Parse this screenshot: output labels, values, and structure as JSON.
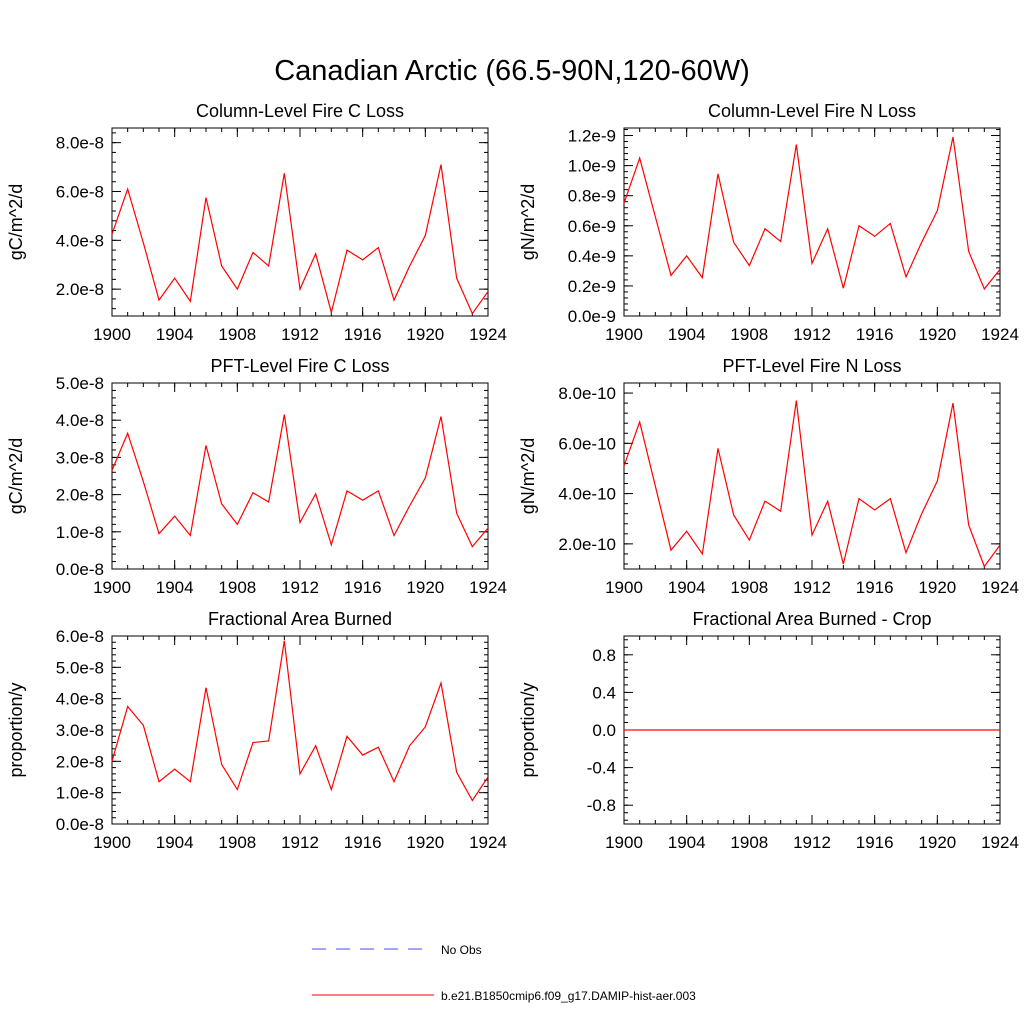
{
  "figure_title": "Canadian Arctic (66.5-90N,120-60W)",
  "colors": {
    "model": "#ff0000",
    "obs": "#4a4aff",
    "axis": "#000000"
  },
  "legend": [
    {
      "label": "No Obs",
      "style": "dashed",
      "color": "#4a4aff"
    },
    {
      "label": "b.e21.B1850cmip6.f09_g17.DAMIP-hist-aer.003",
      "style": "solid",
      "color": "#ff0000"
    }
  ],
  "chart_data": [
    {
      "type": "line",
      "title": "Column-Level Fire C Loss",
      "ylabel": "gC/m^2/d",
      "xlim": [
        1900,
        1924
      ],
      "ylim": [
        9e-09,
        8.6e-08
      ],
      "yticks": [
        2e-08,
        4e-08,
        6e-08,
        8e-08
      ],
      "ytick_labels": [
        "2.0e-8",
        "4.0e-8",
        "6.0e-8",
        "8.0e-8"
      ],
      "series": [
        {
          "values": [
            4.25e-08,
            6.1e-08,
            3.9e-08,
            1.55e-08,
            2.45e-08,
            1.5e-08,
            5.75e-08,
            2.95e-08,
            2e-08,
            3.5e-08,
            2.95e-08,
            6.75e-08,
            2e-08,
            3.45e-08,
            1.05e-08,
            3.6e-08,
            3.2e-08,
            3.7e-08,
            1.55e-08,
            2.95e-08,
            4.2e-08,
            7.1e-08,
            2.45e-08,
            1e-08,
            1.9e-08
          ]
        }
      ]
    },
    {
      "type": "line",
      "title": "Column-Level Fire N Loss",
      "ylabel": "gN/m^2/d",
      "xlim": [
        1900,
        1924
      ],
      "ylim": [
        0,
        1.25e-09
      ],
      "yticks": [
        0,
        2e-10,
        4e-10,
        6e-10,
        8e-10,
        1e-09,
        1.2e-09
      ],
      "ytick_labels": [
        "0.0e-9",
        "0.2e-9",
        "0.4e-9",
        "0.6e-9",
        "0.8e-9",
        "1.0e-9",
        "1.2e-9"
      ],
      "series": [
        {
          "values": [
            7.5e-10,
            1.05e-09,
            6.6e-10,
            2.7e-10,
            4e-10,
            2.55e-10,
            9.45e-10,
            4.9e-10,
            3.35e-10,
            5.8e-10,
            4.95e-10,
            1.14e-09,
            3.5e-10,
            5.8e-10,
            1.85e-10,
            6e-10,
            5.3e-10,
            6.15e-10,
            2.6e-10,
            4.9e-10,
            7e-10,
            1.19e-09,
            4.3e-10,
            1.8e-10,
            3.1e-10
          ]
        }
      ]
    },
    {
      "type": "line",
      "title": "PFT-Level Fire C Loss",
      "ylabel": "gC/m^2/d",
      "xlim": [
        1900,
        1924
      ],
      "ylim": [
        0,
        5e-08
      ],
      "yticks": [
        0,
        1e-08,
        2e-08,
        3e-08,
        4e-08,
        5e-08
      ],
      "ytick_labels": [
        "0.0e-8",
        "1.0e-8",
        "2.0e-8",
        "3.0e-8",
        "4.0e-8",
        "5.0e-8"
      ],
      "series": [
        {
          "values": [
            2.65e-08,
            3.65e-08,
            2.35e-08,
            9.5e-09,
            1.42e-08,
            9e-09,
            3.32e-08,
            1.75e-08,
            1.2e-08,
            2.05e-08,
            1.8e-08,
            4.15e-08,
            1.25e-08,
            2.02e-08,
            6.5e-09,
            2.1e-08,
            1.85e-08,
            2.1e-08,
            9e-09,
            1.7e-08,
            2.45e-08,
            4.1e-08,
            1.5e-08,
            6e-09,
            1.1e-08
          ]
        }
      ]
    },
    {
      "type": "line",
      "title": "PFT-Level Fire N Loss",
      "ylabel": "gN/m^2/d",
      "xlim": [
        1900,
        1924
      ],
      "ylim": [
        1e-10,
        8.4e-10
      ],
      "yticks": [
        2e-10,
        4e-10,
        6e-10,
        8e-10
      ],
      "ytick_labels": [
        "2.0e-10",
        "4.0e-10",
        "6.0e-10",
        "8.0e-10"
      ],
      "series": [
        {
          "values": [
            5.1e-10,
            6.85e-10,
            4.3e-10,
            1.75e-10,
            2.5e-10,
            1.6e-10,
            5.8e-10,
            3.15e-10,
            2.15e-10,
            3.7e-10,
            3.3e-10,
            7.7e-10,
            2.35e-10,
            3.7e-10,
            1.2e-10,
            3.8e-10,
            3.35e-10,
            3.8e-10,
            1.65e-10,
            3.2e-10,
            4.5e-10,
            7.6e-10,
            2.75e-10,
            1.1e-10,
            1.95e-10
          ]
        }
      ]
    },
    {
      "type": "line",
      "title": "Fractional Area Burned",
      "ylabel": "proportion/y",
      "xlim": [
        1900,
        1924
      ],
      "ylim": [
        0,
        6e-08
      ],
      "yticks": [
        0,
        1e-08,
        2e-08,
        3e-08,
        4e-08,
        5e-08,
        6e-08
      ],
      "ytick_labels": [
        "0.0e-8",
        "1.0e-8",
        "2.0e-8",
        "3.0e-8",
        "4.0e-8",
        "5.0e-8",
        "6.0e-8"
      ],
      "series": [
        {
          "values": [
            2e-08,
            3.75e-08,
            3.15e-08,
            1.35e-08,
            1.75e-08,
            1.35e-08,
            4.35e-08,
            1.9e-08,
            1.1e-08,
            2.6e-08,
            2.65e-08,
            5.85e-08,
            1.6e-08,
            2.5e-08,
            1.1e-08,
            2.8e-08,
            2.2e-08,
            2.45e-08,
            1.35e-08,
            2.5e-08,
            3.1e-08,
            4.5e-08,
            1.65e-08,
            7.5e-09,
            1.5e-08
          ]
        }
      ]
    },
    {
      "type": "line",
      "title": "Fractional Area Burned - Crop",
      "ylabel": "proportion/y",
      "xlim": [
        1900,
        1924
      ],
      "ylim": [
        -1,
        1
      ],
      "yticks": [
        -0.8,
        -0.4,
        0,
        0.4,
        0.8
      ],
      "ytick_labels": [
        "-0.8",
        "-0.4",
        "0.0",
        "0.4",
        "0.8"
      ],
      "series": [
        {
          "values": [
            0,
            0,
            0,
            0,
            0,
            0,
            0,
            0,
            0,
            0,
            0,
            0,
            0,
            0,
            0,
            0,
            0,
            0,
            0,
            0,
            0,
            0,
            0,
            0,
            0
          ]
        }
      ]
    }
  ],
  "xticks": [
    1900,
    1904,
    1908,
    1912,
    1916,
    1920,
    1924
  ],
  "xtick_labels": [
    "1900",
    "1904",
    "1908",
    "1912",
    "1916",
    "1920",
    "1924"
  ]
}
